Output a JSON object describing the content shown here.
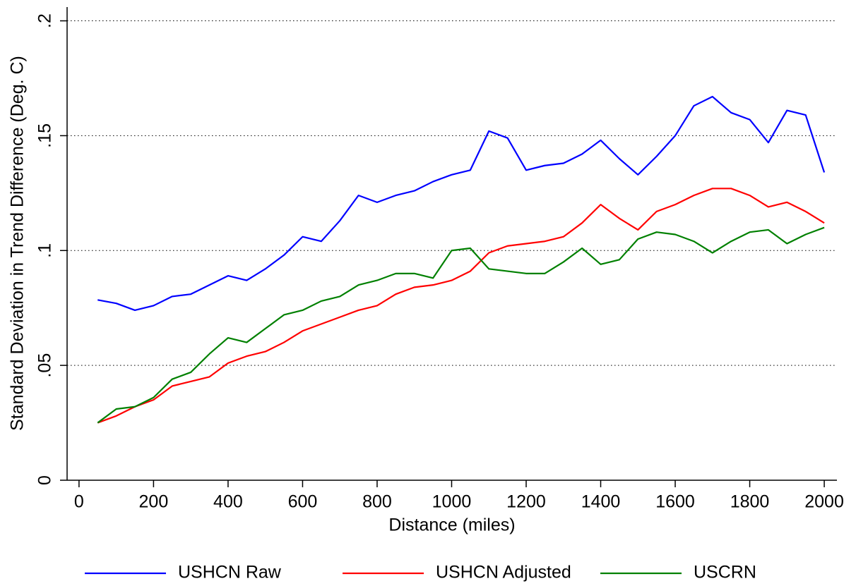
{
  "chart_data": {
    "type": "line",
    "x_label": "Distance (miles)",
    "y_label": "Standard Deviation in Trend Difference (Deg. C)",
    "x": [
      50,
      100,
      150,
      200,
      250,
      300,
      350,
      400,
      450,
      500,
      550,
      600,
      650,
      700,
      750,
      800,
      850,
      900,
      950,
      1000,
      1050,
      1100,
      1150,
      1200,
      1250,
      1300,
      1350,
      1400,
      1450,
      1500,
      1550,
      1600,
      1650,
      1700,
      1750,
      1800,
      1850,
      1900,
      1950,
      2000
    ],
    "series": [
      {
        "name": "USHCN Raw",
        "color": "#0000ff",
        "values": [
          0.0785,
          0.077,
          0.074,
          0.076,
          0.08,
          0.081,
          0.085,
          0.089,
          0.087,
          0.092,
          0.098,
          0.106,
          0.104,
          0.113,
          0.124,
          0.121,
          0.124,
          0.126,
          0.13,
          0.133,
          0.135,
          0.152,
          0.149,
          0.135,
          0.137,
          0.138,
          0.142,
          0.148,
          0.14,
          0.133,
          0.141,
          0.15,
          0.163,
          0.167,
          0.16,
          0.157,
          0.147,
          0.161,
          0.159,
          0.134
        ]
      },
      {
        "name": "USHCN Adjusted",
        "color": "#ff0000",
        "values": [
          0.025,
          0.028,
          0.032,
          0.035,
          0.041,
          0.043,
          0.045,
          0.051,
          0.054,
          0.056,
          0.06,
          0.065,
          0.068,
          0.071,
          0.074,
          0.076,
          0.081,
          0.084,
          0.085,
          0.087,
          0.091,
          0.099,
          0.102,
          0.103,
          0.104,
          0.106,
          0.112,
          0.12,
          0.114,
          0.109,
          0.117,
          0.12,
          0.124,
          0.127,
          0.127,
          0.124,
          0.119,
          0.121,
          0.117,
          0.112
        ]
      },
      {
        "name": "USCRN",
        "color": "#008000",
        "values": [
          0.025,
          0.031,
          0.032,
          0.036,
          0.044,
          0.047,
          0.055,
          0.062,
          0.06,
          0.066,
          0.072,
          0.074,
          0.078,
          0.08,
          0.085,
          0.087,
          0.09,
          0.09,
          0.088,
          0.1,
          0.101,
          0.092,
          0.091,
          0.09,
          0.09,
          0.095,
          0.101,
          0.094,
          0.096,
          0.105,
          0.108,
          0.107,
          0.104,
          0.099,
          0.104,
          0.108,
          0.109,
          0.103,
          0.107,
          0.11
        ]
      }
    ],
    "xlim": [
      -32,
      2034
    ],
    "ylim": [
      0,
      0.206
    ],
    "xticks": [
      0,
      200,
      400,
      600,
      800,
      1000,
      1200,
      1400,
      1600,
      1800,
      2000
    ],
    "yticks": [
      0,
      {
        "value": 0.05,
        "label": ".05"
      },
      {
        "value": 0.1,
        "label": ".1"
      },
      {
        "value": 0.15,
        "label": ".15"
      },
      {
        "value": 0.2,
        "label": ".2"
      }
    ],
    "grid": true,
    "legend": "bottom"
  }
}
